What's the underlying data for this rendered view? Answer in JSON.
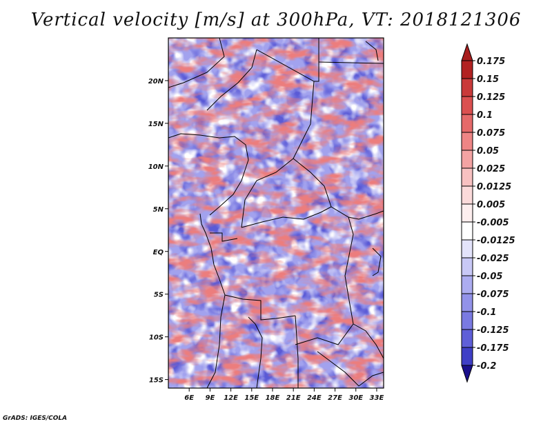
{
  "title": "Vertical velocity [m/s] at 300hPa, VT: 2018121306",
  "credit": "GrADS: IGES/COLA",
  "map": {
    "lon_range": [
      3,
      34
    ],
    "lat_range": [
      -16,
      25
    ],
    "x_ticks": [
      {
        "value": 6,
        "label": "6E"
      },
      {
        "value": 9,
        "label": "9E"
      },
      {
        "value": 12,
        "label": "12E"
      },
      {
        "value": 15,
        "label": "15E"
      },
      {
        "value": 18,
        "label": "18E"
      },
      {
        "value": 21,
        "label": "21E"
      },
      {
        "value": 24,
        "label": "24E"
      },
      {
        "value": 27,
        "label": "27E"
      },
      {
        "value": 30,
        "label": "30E"
      },
      {
        "value": 33,
        "label": "33E"
      }
    ],
    "y_ticks": [
      {
        "value": 20,
        "label": "20N"
      },
      {
        "value": 15,
        "label": "15N"
      },
      {
        "value": 10,
        "label": "10N"
      },
      {
        "value": 5,
        "label": "5N"
      },
      {
        "value": 0,
        "label": "EQ"
      },
      {
        "value": -5,
        "label": "5S"
      },
      {
        "value": -10,
        "label": "10S"
      },
      {
        "value": -15,
        "label": "15S"
      }
    ]
  },
  "colorbar": {
    "max_arrow_color": "#a81e1e",
    "min_arrow_color": "#1a0f8c",
    "levels": [
      {
        "color": "#b22222",
        "label": "0.175"
      },
      {
        "color": "#c93a3a",
        "label": "0.15"
      },
      {
        "color": "#db5050",
        "label": "0.125"
      },
      {
        "color": "#e56a6a",
        "label": "0.1"
      },
      {
        "color": "#ee8585",
        "label": "0.075"
      },
      {
        "color": "#f4a3a3",
        "label": "0.05"
      },
      {
        "color": "#f8c1c1",
        "label": "0.025"
      },
      {
        "color": "#fbdada",
        "label": "0.0125"
      },
      {
        "color": "#fdeeee",
        "label": "0.005"
      },
      {
        "color": "#ffffff",
        "label": "-0.005"
      },
      {
        "color": "#e3e3fb",
        "label": "-0.0125"
      },
      {
        "color": "#c8c8f6",
        "label": "-0.025"
      },
      {
        "color": "#acacf0",
        "label": "-0.05"
      },
      {
        "color": "#9292e9",
        "label": "-0.075"
      },
      {
        "color": "#7a7ae2",
        "label": "-0.1"
      },
      {
        "color": "#5f5fd8",
        "label": "-0.125"
      },
      {
        "color": "#3f3fc6",
        "label": "-0.175"
      },
      {
        "color": "#2a22a8",
        "label": "-0.2"
      }
    ]
  }
}
